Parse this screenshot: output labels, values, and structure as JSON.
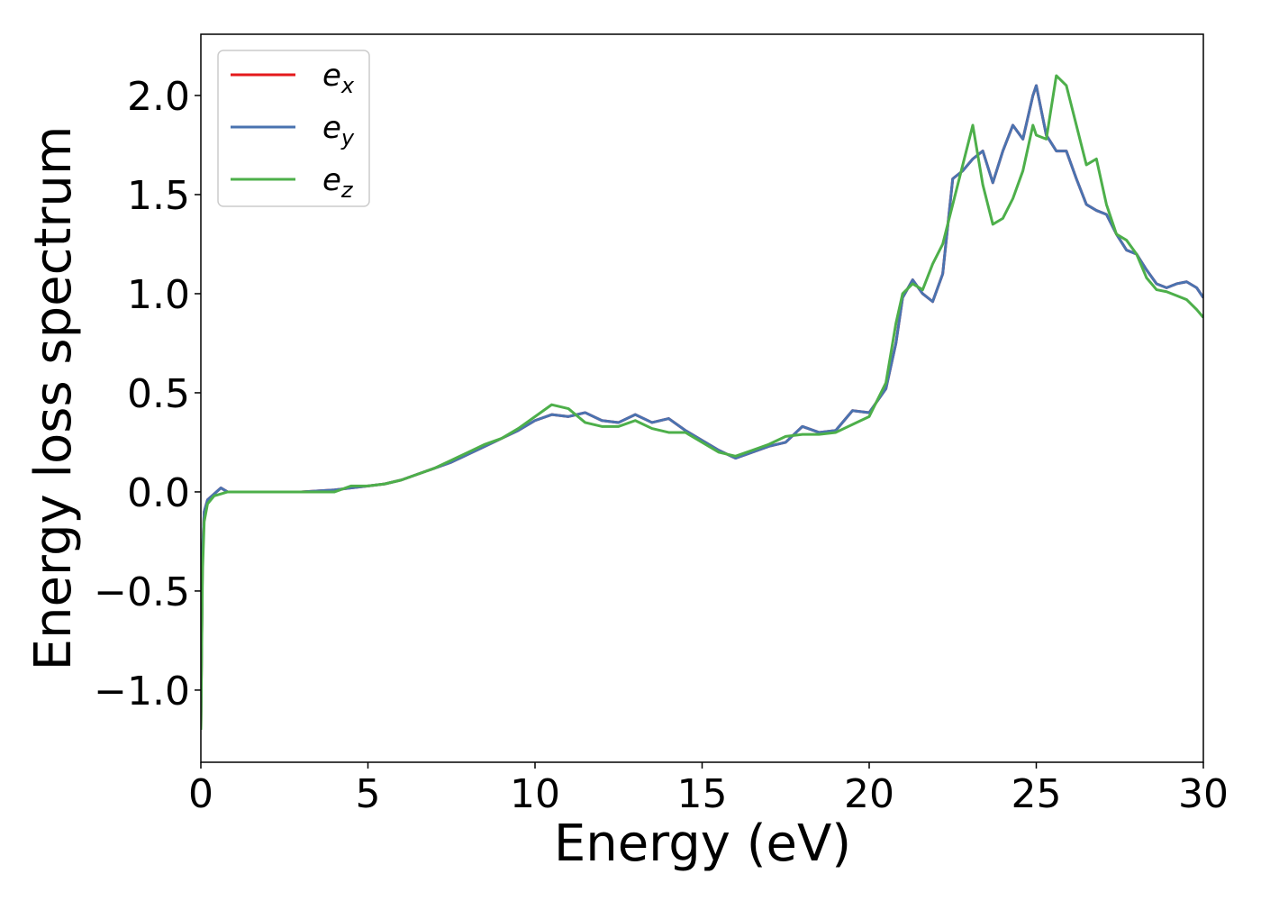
{
  "chart_data": {
    "type": "line",
    "xlabel": "Energy (eV)",
    "ylabel": "Energy loss spectrum",
    "x": [
      0,
      0.05,
      0.1,
      0.2,
      0.4,
      0.6,
      0.8,
      1,
      1.5,
      2,
      3,
      4,
      4.5,
      5,
      5.5,
      6,
      6.5,
      7,
      7.5,
      8,
      8.5,
      9,
      9.5,
      10,
      10.5,
      11,
      11.5,
      12,
      12.5,
      13,
      13.5,
      14,
      14.5,
      15,
      15.5,
      16,
      16.5,
      17,
      17.5,
      18,
      18.5,
      19,
      19.5,
      20,
      20.5,
      20.8,
      21,
      21.3,
      21.6,
      21.9,
      22.2,
      22.5,
      22.8,
      23.1,
      23.4,
      23.7,
      24,
      24.3,
      24.6,
      24.9,
      25,
      25.3,
      25.6,
      25.9,
      26.2,
      26.5,
      26.8,
      27.1,
      27.4,
      27.7,
      28,
      28.3,
      28.6,
      28.9,
      29.2,
      29.5,
      29.8,
      30
    ],
    "series": [
      {
        "name": "ex",
        "color": "#e41a1c",
        "values": [
          -1.2,
          -0.3,
          -0.1,
          -0.04,
          -0.01,
          0.02,
          0.0,
          0.0,
          0.0,
          0.0,
          0.0,
          0.01,
          0.02,
          0.03,
          0.04,
          0.06,
          0.09,
          0.12,
          0.15,
          0.19,
          0.23,
          0.27,
          0.31,
          0.36,
          0.39,
          0.38,
          0.4,
          0.36,
          0.35,
          0.39,
          0.35,
          0.37,
          0.31,
          0.26,
          0.21,
          0.17,
          0.2,
          0.23,
          0.25,
          0.33,
          0.3,
          0.31,
          0.41,
          0.4,
          0.52,
          0.75,
          0.98,
          1.07,
          1.0,
          0.96,
          1.1,
          1.58,
          1.62,
          1.68,
          1.72,
          1.56,
          1.72,
          1.85,
          1.78,
          2.0,
          2.05,
          1.8,
          1.72,
          1.72,
          1.58,
          1.45,
          1.42,
          1.4,
          1.3,
          1.22,
          1.2,
          1.12,
          1.05,
          1.03,
          1.05,
          1.06,
          1.03,
          0.98
        ]
      },
      {
        "name": "ey",
        "color": "#4a73b0",
        "values": [
          -1.2,
          -0.3,
          -0.1,
          -0.04,
          -0.01,
          0.02,
          0.0,
          0.0,
          0.0,
          0.0,
          0.0,
          0.01,
          0.02,
          0.03,
          0.04,
          0.06,
          0.09,
          0.12,
          0.15,
          0.19,
          0.23,
          0.27,
          0.31,
          0.36,
          0.39,
          0.38,
          0.4,
          0.36,
          0.35,
          0.39,
          0.35,
          0.37,
          0.31,
          0.26,
          0.21,
          0.17,
          0.2,
          0.23,
          0.25,
          0.33,
          0.3,
          0.31,
          0.41,
          0.4,
          0.52,
          0.75,
          0.98,
          1.07,
          1.0,
          0.96,
          1.1,
          1.58,
          1.62,
          1.68,
          1.72,
          1.56,
          1.72,
          1.85,
          1.78,
          2.0,
          2.05,
          1.8,
          1.72,
          1.72,
          1.58,
          1.45,
          1.42,
          1.4,
          1.3,
          1.22,
          1.2,
          1.12,
          1.05,
          1.03,
          1.05,
          1.06,
          1.03,
          0.98
        ]
      },
      {
        "name": "ez",
        "color": "#4daf4a",
        "values": [
          -1.2,
          -0.4,
          -0.15,
          -0.06,
          -0.02,
          -0.01,
          0.0,
          0.0,
          0.0,
          0.0,
          0.0,
          0.0,
          0.03,
          0.03,
          0.04,
          0.06,
          0.09,
          0.12,
          0.16,
          0.2,
          0.24,
          0.27,
          0.32,
          0.38,
          0.44,
          0.42,
          0.35,
          0.33,
          0.33,
          0.36,
          0.32,
          0.3,
          0.3,
          0.25,
          0.2,
          0.18,
          0.21,
          0.24,
          0.28,
          0.29,
          0.29,
          0.3,
          0.34,
          0.38,
          0.55,
          0.85,
          1.0,
          1.05,
          1.02,
          1.15,
          1.25,
          1.45,
          1.65,
          1.85,
          1.55,
          1.35,
          1.38,
          1.48,
          1.62,
          1.85,
          1.8,
          1.78,
          2.1,
          2.05,
          1.85,
          1.65,
          1.68,
          1.45,
          1.3,
          1.27,
          1.2,
          1.08,
          1.02,
          1.01,
          0.99,
          0.97,
          0.92,
          0.88
        ]
      }
    ],
    "xlim": [
      0,
      30
    ],
    "xticks": [
      0,
      5,
      10,
      15,
      20,
      25,
      30
    ],
    "ylim": [
      -1.364,
      2.309
    ],
    "yticks": [
      {
        "value": -1,
        "label": "−1.0"
      },
      {
        "value": -0.5,
        "label": "−0.5"
      },
      {
        "value": 0,
        "label": "0.0"
      },
      {
        "value": 0.5,
        "label": "0.5"
      },
      {
        "value": 1,
        "label": "1.0"
      },
      {
        "value": 1.5,
        "label": "1.5"
      },
      {
        "value": 2,
        "label": "2.0"
      }
    ],
    "legend": "upper left",
    "grid": false
  }
}
